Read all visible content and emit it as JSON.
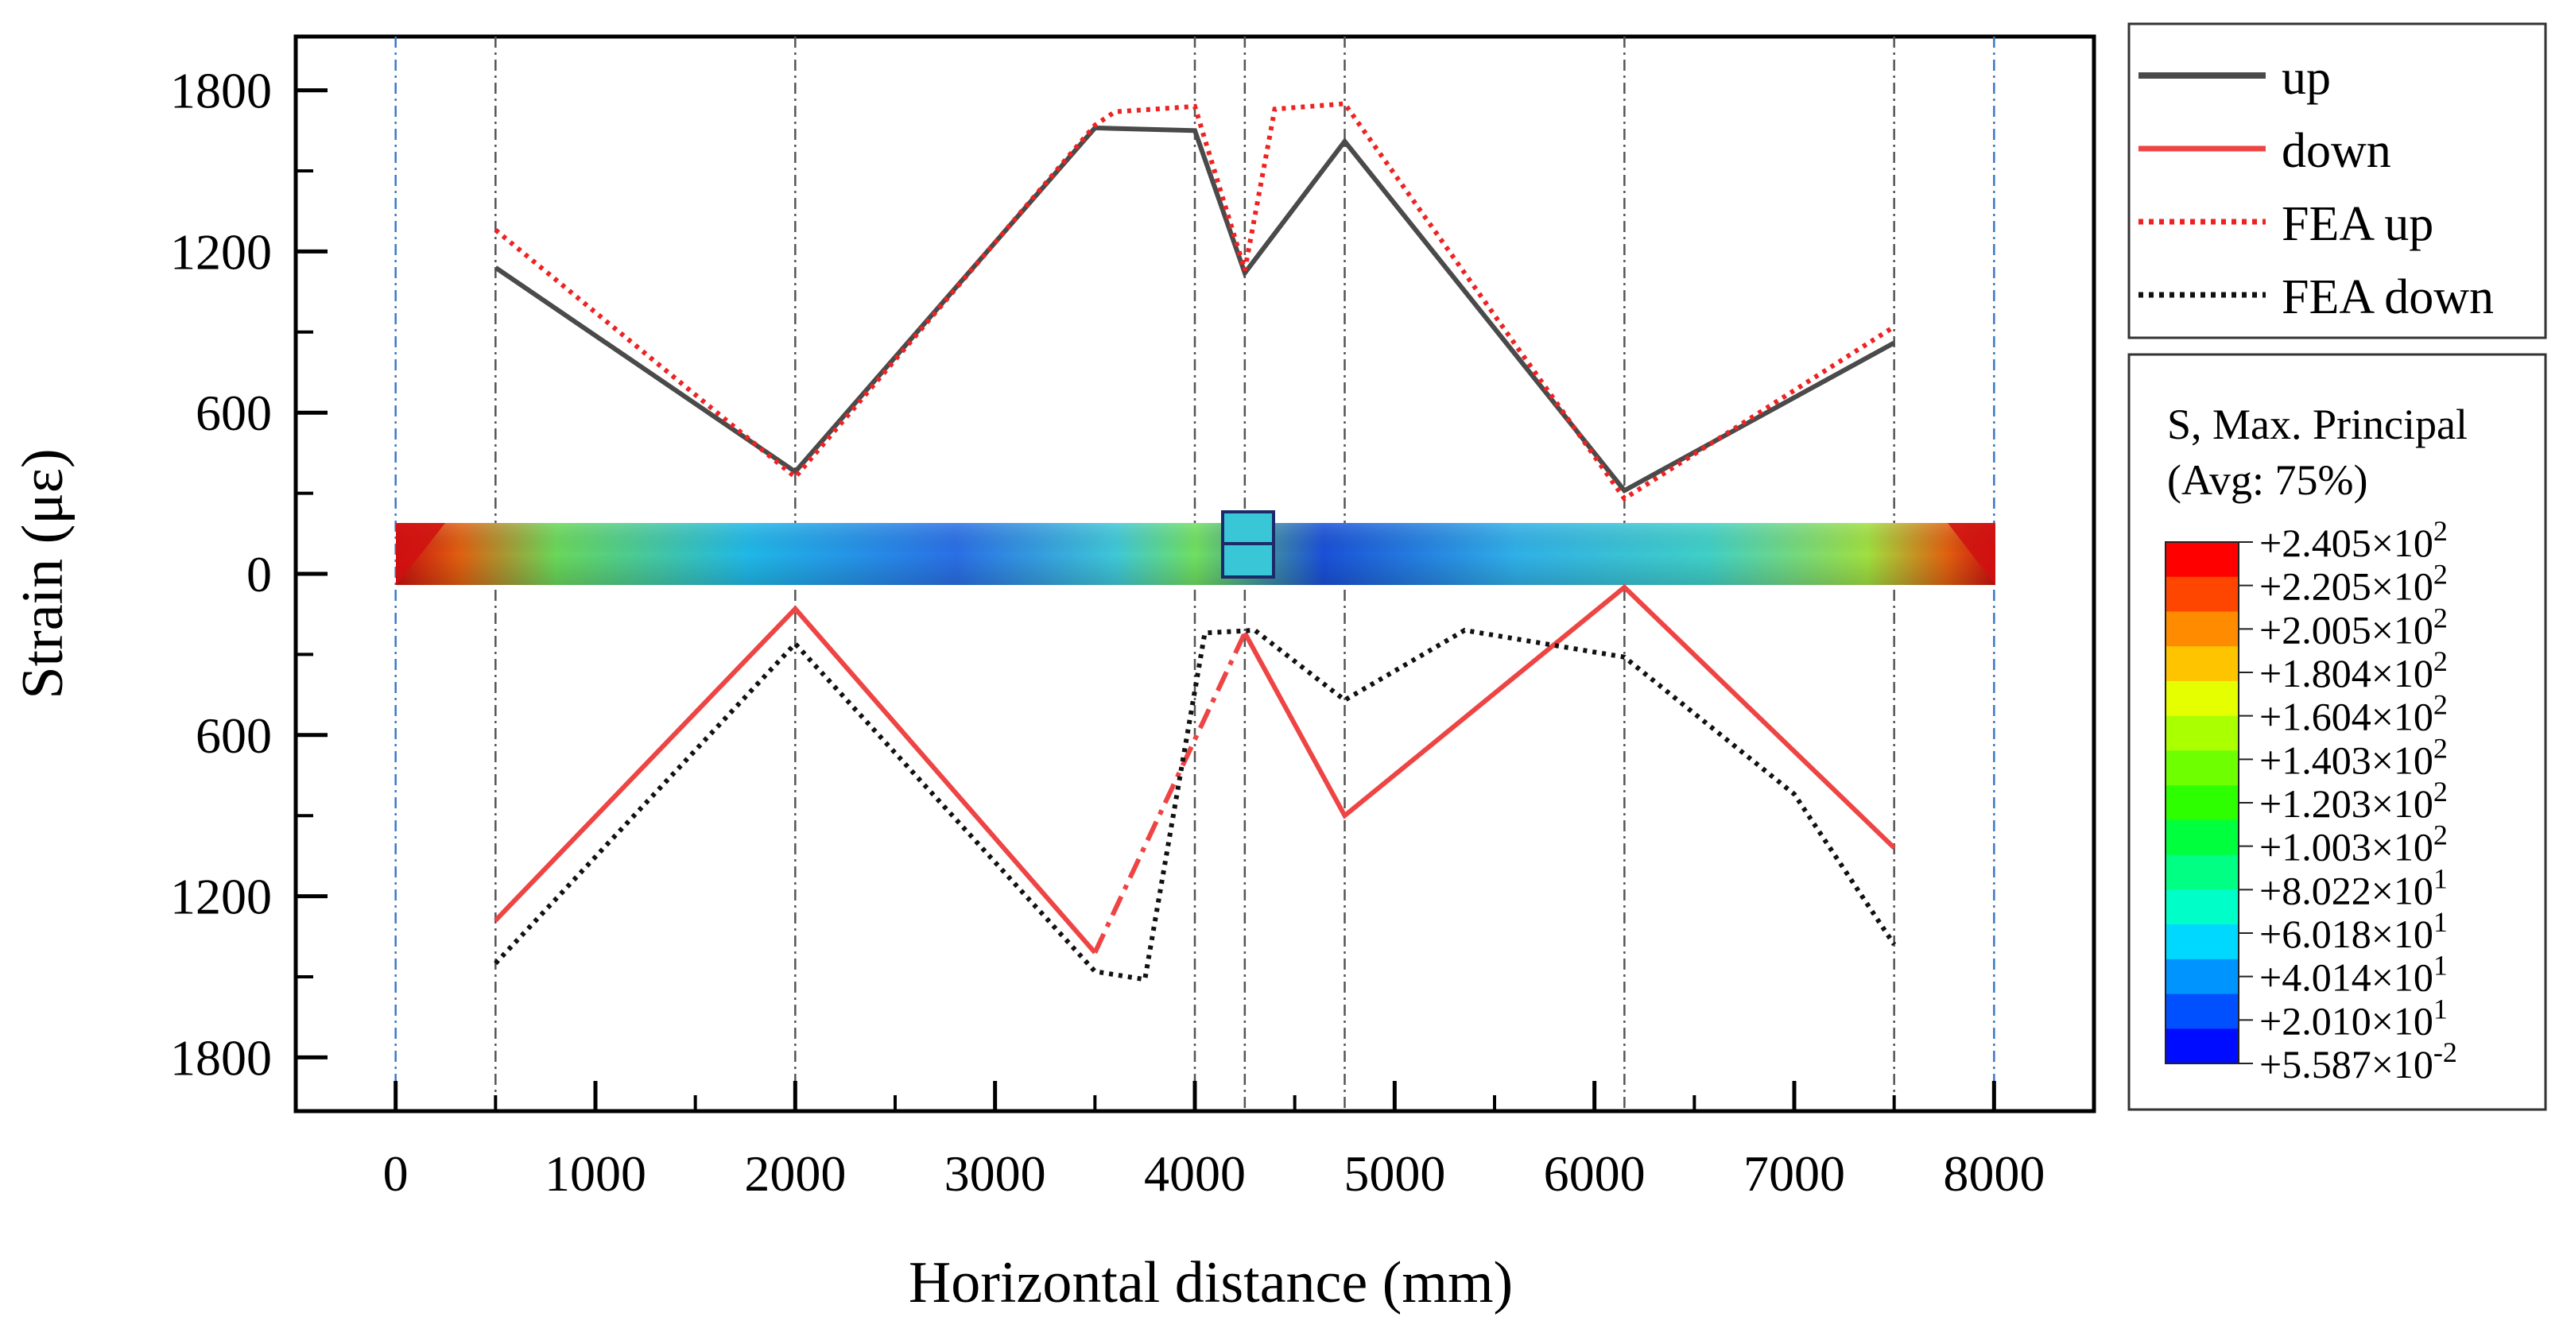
{
  "chart_data": {
    "type": "line",
    "xlabel": "Horizontal distance (mm)",
    "ylabel": "Strain (με)",
    "xlim": [
      -500,
      8500
    ],
    "ylim": [
      -2000,
      2000
    ],
    "xticks": [
      0,
      1000,
      2000,
      3000,
      4000,
      5000,
      6000,
      7000,
      8000
    ],
    "xtick_labels": [
      "0",
      "1000",
      "2000",
      "3000",
      "4000",
      "5000",
      "6000",
      "7000",
      "8000"
    ],
    "yticks": [
      1800,
      1200,
      600,
      0,
      -600,
      -1200,
      -1800
    ],
    "ytick_labels": [
      "1800",
      "1200",
      "600",
      "0",
      "600",
      "1200",
      "1800"
    ],
    "grid": "vertical dash-dot lines at 0, 500, 2000, 4000, 4250, 4750, 6150, 7500, 8000",
    "series": [
      {
        "name": "up",
        "style": "solid",
        "color": "#4a4a4a",
        "x": [
          500,
          2000,
          3500,
          4000,
          4250,
          4750,
          6150,
          7500
        ],
        "y": [
          1140,
          380,
          1660,
          1650,
          1120,
          1610,
          310,
          860
        ]
      },
      {
        "name": "down",
        "style": "solid",
        "color": "#ee4444",
        "x": [
          500,
          2000,
          3500,
          4250,
          4750,
          6150,
          7500
        ],
        "y": [
          -1290,
          -130,
          -1410,
          -220,
          -900,
          -50,
          -1020
        ],
        "gap": {
          "x": [
            3500,
            4250
          ],
          "y": [
            -1410,
            -220
          ],
          "style": "dash-dot"
        }
      },
      {
        "name": "FEA up",
        "style": "dotted",
        "color": "#ee2222",
        "x": [
          500,
          2000,
          3500,
          3600,
          4000,
          4250,
          4400,
          4750,
          6150,
          7500
        ],
        "y": [
          1280,
          360,
          1670,
          1720,
          1740,
          1130,
          1730,
          1750,
          280,
          920
        ]
      },
      {
        "name": "FEA down",
        "style": "dotted",
        "color": "#111111",
        "x": [
          500,
          2000,
          3500,
          3750,
          4050,
          4300,
          4750,
          5350,
          6150,
          7000,
          7500
        ],
        "y": [
          -1450,
          -260,
          -1480,
          -1510,
          -220,
          -210,
          -470,
          -210,
          -310,
          -820,
          -1380
        ]
      }
    ],
    "legend": {
      "placement": "right-top",
      "entries": [
        "up",
        "down",
        "FEA up",
        "FEA down"
      ]
    },
    "colorbar": {
      "title_line1": "S, Max. Principal",
      "title_line2": "(Avg: 75%)",
      "colors": [
        "#ff0000",
        "#ff4600",
        "#ff8c00",
        "#ffc400",
        "#e6ff00",
        "#aaff00",
        "#6eff00",
        "#2eff00",
        "#00ff3c",
        "#00ff82",
        "#00ffc8",
        "#00d8ff",
        "#0094ff",
        "#0050ff",
        "#000cff"
      ],
      "labels": [
        {
          "mant": "+2.405×10",
          "exp": "2"
        },
        {
          "mant": "+2.205×10",
          "exp": "2"
        },
        {
          "mant": "+2.005×10",
          "exp": "2"
        },
        {
          "mant": "+1.804×10",
          "exp": "2"
        },
        {
          "mant": "+1.604×10",
          "exp": "2"
        },
        {
          "mant": "+1.403×10",
          "exp": "2"
        },
        {
          "mant": "+1.203×10",
          "exp": "2"
        },
        {
          "mant": "+1.003×10",
          "exp": "2"
        },
        {
          "mant": "+8.022×10",
          "exp": "1"
        },
        {
          "mant": "+6.018×10",
          "exp": "1"
        },
        {
          "mant": "+4.014×10",
          "exp": "1"
        },
        {
          "mant": "+2.010×10",
          "exp": "1"
        },
        {
          "mant": "+5.587×10",
          "exp": "-2"
        }
      ]
    }
  }
}
